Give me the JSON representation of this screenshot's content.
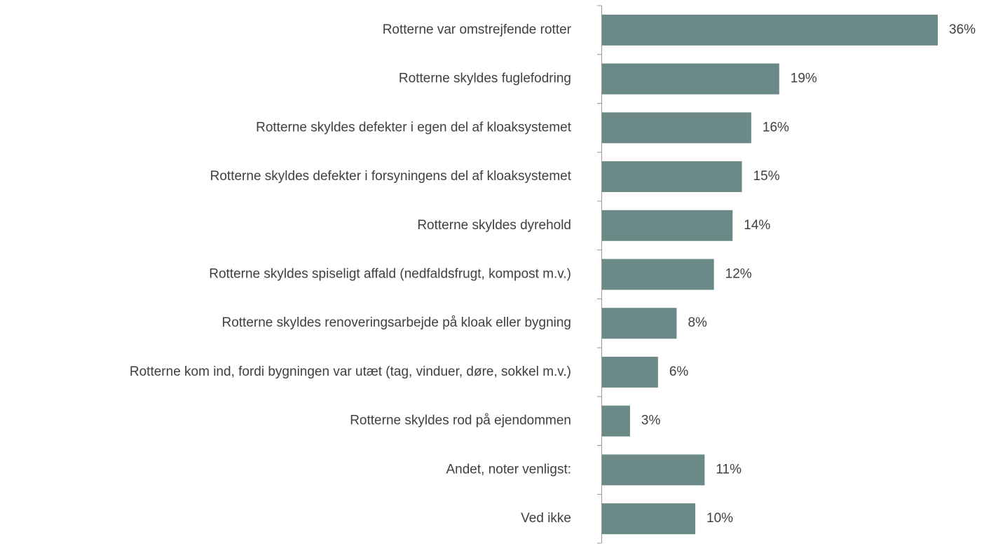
{
  "chart_data": {
    "type": "hbar",
    "categories": [
      "Rotterne var omstrejfende rotter",
      "Rotterne skyldes fuglefodring",
      "Rotterne skyldes defekter i egen del af kloaksystemet",
      "Rotterne skyldes defekter i forsyningens del af kloaksystemet",
      "Rotterne skyldes dyrehold",
      "Rotterne skyldes spiseligt affald (nedfaldsfrugt, kompost m.v.)",
      "Rotterne skyldes renoveringsarbejde på kloak eller bygning",
      "Rotterne kom ind, fordi bygningen var utæt (tag, vinduer, døre, sokkel m.v.)",
      "Rotterne skyldes rod på ejendommen",
      "Andet, noter venligst:",
      "Ved ikke"
    ],
    "values": [
      36,
      19,
      16,
      15,
      14,
      12,
      8,
      6,
      3,
      11,
      10
    ],
    "value_labels": [
      "36%",
      "19%",
      "16%",
      "15%",
      "14%",
      "12%",
      "8%",
      "6%",
      "3%",
      "11%",
      "10%"
    ],
    "color": "#6b8a87"
  }
}
